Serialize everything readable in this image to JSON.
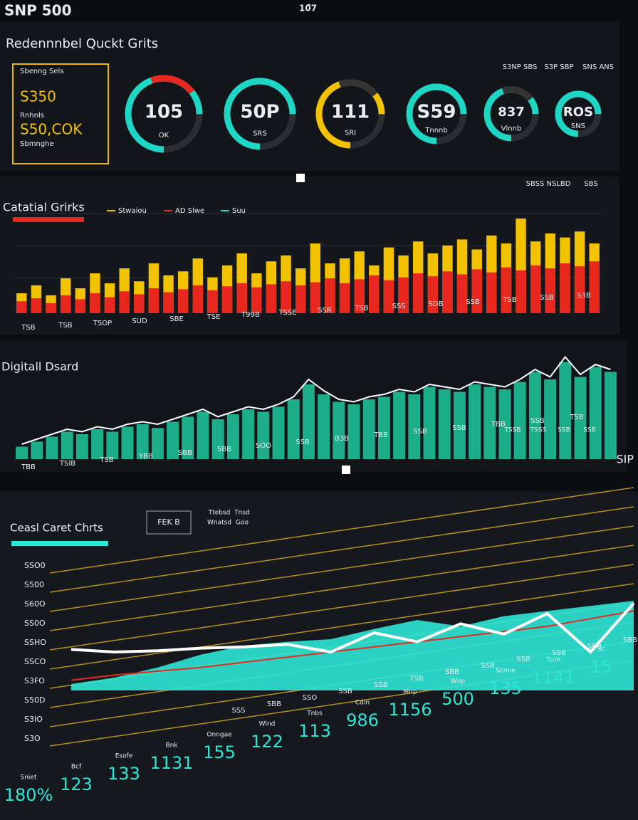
{
  "header": {
    "brand": "SNP 500",
    "center": "10̄7",
    "title": "Redennnbel Quckt Grits",
    "right_labels": [
      "S3NP SBS",
      "S3P SBP",
      "SNS ANS"
    ]
  },
  "kpi_box": {
    "lines": [
      "Sbenng Sels",
      "S350",
      "Rnhnls",
      "S50,COK",
      "Sbmnghe"
    ]
  },
  "gauges": [
    {
      "value": "105",
      "label": "OK",
      "color": "#1fd6c4",
      "arc_color": "#e8281e"
    },
    {
      "value": "50P",
      "label": "SRS",
      "color": "#1fd6c4",
      "arc_color": "#1fd6c4"
    },
    {
      "value": "111",
      "label": "SRI",
      "color": "#f2c200",
      "arc_color": "#333"
    },
    {
      "value": "S59",
      "label": "Tnnnb",
      "color": "#1fd6c4",
      "arc_color": "#1fd6c4"
    },
    {
      "value": "837",
      "label": "Vlnnb",
      "color": "#1fd6c4",
      "arc_color": "#333"
    },
    {
      "value": "ROS",
      "label": "SNS",
      "color": "#1fd6c4",
      "arc_color": "#1fd6c4"
    }
  ],
  "panel_bars": {
    "title": "Catatial Grirks",
    "right_labels": [
      "SBSS NSLBD",
      "SBS"
    ],
    "series": [
      {
        "name": "Stwaiou",
        "color": "#f2c200",
        "values": [
          20,
          28,
          18,
          35,
          25,
          40,
          30,
          45,
          32,
          50,
          38,
          42,
          55,
          36,
          48,
          60,
          40,
          52,
          58,
          45,
          70,
          50,
          55,
          62,
          48,
          66,
          58,
          72,
          60,
          68,
          74,
          64,
          78,
          70,
          95,
          72,
          80,
          76,
          82,
          70
        ]
      },
      {
        "name": "AD Slwe",
        "color": "#e8281e",
        "values": [
          12,
          15,
          10,
          18,
          14,
          20,
          16,
          22,
          19,
          25,
          21,
          24,
          28,
          23,
          27,
          30,
          26,
          29,
          32,
          28,
          31,
          35,
          30,
          34,
          38,
          33,
          36,
          40,
          37,
          42,
          39,
          44,
          41,
          46,
          43,
          48,
          45,
          50,
          47,
          52
        ]
      },
      {
        "name": "Suu",
        "color": "#1fd6c4",
        "values": []
      }
    ],
    "ylim": [
      0,
      100
    ],
    "x_labels": [
      "TSB",
      "TSB",
      "TSOP",
      "SUD",
      "SBE",
      "TSE",
      "T99B",
      "TSSE",
      "SSR",
      "TSB",
      "SSS",
      "SDB",
      "SSB",
      "TSB",
      "SSB",
      "S3B"
    ]
  },
  "panel_area": {
    "title": "Digitall Dsard",
    "series": [
      {
        "name": "bars",
        "color": "#1fc9a0",
        "values": [
          10,
          14,
          18,
          22,
          20,
          24,
          22,
          26,
          28,
          25,
          30,
          34,
          38,
          32,
          36,
          40,
          38,
          42,
          48,
          60,
          52,
          46,
          44,
          48,
          50,
          54,
          52,
          58,
          56,
          54,
          60,
          58,
          56,
          62,
          70,
          64,
          78,
          66,
          74,
          70
        ]
      },
      {
        "name": "line",
        "color": "#ffffff",
        "values": [
          12,
          16,
          20,
          24,
          22,
          26,
          24,
          28,
          30,
          28,
          32,
          36,
          40,
          34,
          38,
          42,
          40,
          44,
          50,
          64,
          55,
          48,
          46,
          50,
          52,
          56,
          54,
          60,
          58,
          56,
          62,
          60,
          58,
          64,
          72,
          66,
          82,
          68,
          76,
          72
        ]
      }
    ],
    "ylim": [
      0,
      100
    ],
    "x_labels": [
      "TBB",
      "TSIB",
      "TSB",
      "YBB",
      "SBB",
      "SBB",
      "SOO",
      "SSB",
      "B3B",
      "TBB",
      "SSB",
      "SSB",
      "TBB",
      "SSB",
      "TSB"
    ],
    "bottom_labels": [
      "TSSB",
      "TSSS",
      "SSB",
      "SSB"
    ]
  },
  "panel_line": {
    "title": "Ceasl Caret Chrts",
    "badge": "FEK B",
    "mini_labels": [
      "Ttebsd",
      "Tnsd",
      "Wnatsd",
      "Goo"
    ],
    "right_label": "SIP",
    "y_labels": [
      "SSO0",
      "S500",
      "S60O",
      "SS0O",
      "SSHO",
      "SSCO",
      "S3FO",
      "S50D",
      "S3IO",
      "S3O"
    ],
    "series": [
      {
        "name": "white",
        "color": "#ffffff",
        "values": [
          32,
          30,
          31,
          33,
          34,
          36,
          30,
          45,
          38,
          52,
          44,
          60,
          30,
          68
        ]
      },
      {
        "name": "teal",
        "color": "#2ee6d6",
        "values": [
          5,
          10,
          18,
          28,
          35,
          38,
          40,
          48,
          55,
          50,
          58,
          62,
          66,
          70
        ]
      },
      {
        "name": "red",
        "color": "#e8281e",
        "values": [
          8,
          12,
          15,
          18,
          22,
          26,
          30,
          34,
          38,
          42,
          46,
          50,
          56,
          62
        ]
      }
    ],
    "ylim": [
      0,
      100
    ],
    "x_labels": [
      "SSS",
      "SBB",
      "SSO",
      "SSB",
      "SSB",
      "TSB",
      "SBB",
      "SSB",
      "SSB",
      "SSB",
      "SBB",
      "SBB"
    ]
  },
  "stats": [
    {
      "label": "Sniet",
      "value": "180%"
    },
    {
      "label": "Bcf",
      "value": "123"
    },
    {
      "label": "Esofe",
      "value": "133"
    },
    {
      "label": "Bnk",
      "value": "1131"
    },
    {
      "label": "Onngae",
      "value": "155"
    },
    {
      "label": "Wlnd",
      "value": "122"
    },
    {
      "label": "Tnbs",
      "value": "113"
    },
    {
      "label": "Cdin",
      "value": "986"
    },
    {
      "label": "Mnp",
      "value": "1156"
    },
    {
      "label": "Wnp",
      "value": "500"
    },
    {
      "label": "Scnne",
      "value": "135"
    },
    {
      "label": "Tnm",
      "value": "1141"
    },
    {
      "label": "Sc",
      "value": "15"
    }
  ]
}
